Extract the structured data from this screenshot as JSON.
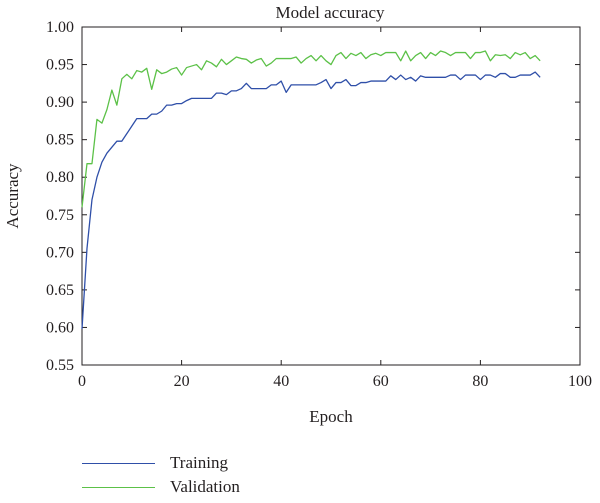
{
  "chart_data": {
    "type": "line",
    "title": "Model accuracy",
    "xlabel": "Epoch",
    "ylabel": "Accuracy",
    "xlim": [
      0,
      100
    ],
    "ylim": [
      0.55,
      1.0
    ],
    "xticks": [
      0,
      20,
      40,
      60,
      80,
      100
    ],
    "yticks": [
      "0.55",
      "0.60",
      "0.65",
      "0.70",
      "0.75",
      "0.80",
      "0.85",
      "0.90",
      "0.95",
      "1.00"
    ],
    "grid": false,
    "legend_position": "below",
    "colors": {
      "Training": "#2f4fa8",
      "Validation": "#5cc148"
    },
    "series": [
      {
        "name": "Training",
        "color": "#2f4fa8",
        "x": [
          0,
          1,
          2,
          3,
          4,
          5,
          6,
          7,
          8,
          9,
          10,
          11,
          12,
          13,
          14,
          15,
          16,
          17,
          18,
          19,
          20,
          21,
          22,
          23,
          24,
          25,
          26,
          27,
          28,
          29,
          30,
          31,
          32,
          33,
          34,
          35,
          36,
          37,
          38,
          39,
          40,
          41,
          42,
          43,
          44,
          45,
          46,
          47,
          48,
          49,
          50,
          51,
          52,
          53,
          54,
          55,
          56,
          57,
          58,
          59,
          60,
          61,
          62,
          63,
          64,
          65,
          66,
          67,
          68,
          69,
          70,
          71,
          72,
          73,
          74,
          75,
          76,
          77,
          78,
          79,
          80,
          81,
          82,
          83,
          84,
          85,
          86,
          87,
          88,
          89,
          90,
          91,
          92
        ],
        "y": [
          0.598,
          0.705,
          0.77,
          0.8,
          0.82,
          0.832,
          0.84,
          0.848,
          0.848,
          0.858,
          0.868,
          0.878,
          0.878,
          0.878,
          0.884,
          0.884,
          0.888,
          0.896,
          0.896,
          0.898,
          0.898,
          0.902,
          0.905,
          0.905,
          0.905,
          0.905,
          0.905,
          0.912,
          0.912,
          0.91,
          0.915,
          0.915,
          0.918,
          0.925,
          0.918,
          0.918,
          0.918,
          0.918,
          0.923,
          0.923,
          0.928,
          0.913,
          0.923,
          0.923,
          0.923,
          0.923,
          0.923,
          0.923,
          0.926,
          0.93,
          0.918,
          0.926,
          0.926,
          0.93,
          0.922,
          0.922,
          0.926,
          0.926,
          0.928,
          0.928,
          0.928,
          0.928,
          0.935,
          0.93,
          0.936,
          0.93,
          0.933,
          0.928,
          0.935,
          0.933,
          0.933,
          0.933,
          0.933,
          0.933,
          0.936,
          0.936,
          0.93,
          0.936,
          0.936,
          0.936,
          0.93,
          0.936,
          0.936,
          0.933,
          0.938,
          0.938,
          0.933,
          0.933,
          0.936,
          0.936,
          0.936,
          0.94,
          0.933
        ]
      },
      {
        "name": "Validation",
        "color": "#5cc148",
        "x": [
          0,
          1,
          2,
          3,
          4,
          5,
          6,
          7,
          8,
          9,
          10,
          11,
          12,
          13,
          14,
          15,
          16,
          17,
          18,
          19,
          20,
          21,
          22,
          23,
          24,
          25,
          26,
          27,
          28,
          29,
          30,
          31,
          32,
          33,
          34,
          35,
          36,
          37,
          38,
          39,
          40,
          41,
          42,
          43,
          44,
          45,
          46,
          47,
          48,
          49,
          50,
          51,
          52,
          53,
          54,
          55,
          56,
          57,
          58,
          59,
          60,
          61,
          62,
          63,
          64,
          65,
          66,
          67,
          68,
          69,
          70,
          71,
          72,
          73,
          74,
          75,
          76,
          77,
          78,
          79,
          80,
          81,
          82,
          83,
          84,
          85,
          86,
          87,
          88,
          89,
          90,
          91,
          92
        ],
        "y": [
          0.76,
          0.818,
          0.818,
          0.877,
          0.872,
          0.89,
          0.916,
          0.896,
          0.931,
          0.937,
          0.931,
          0.942,
          0.94,
          0.945,
          0.917,
          0.943,
          0.938,
          0.94,
          0.944,
          0.946,
          0.936,
          0.946,
          0.948,
          0.95,
          0.943,
          0.955,
          0.952,
          0.947,
          0.957,
          0.95,
          0.955,
          0.96,
          0.958,
          0.957,
          0.952,
          0.956,
          0.958,
          0.948,
          0.952,
          0.958,
          0.958,
          0.958,
          0.958,
          0.96,
          0.952,
          0.958,
          0.962,
          0.955,
          0.962,
          0.955,
          0.95,
          0.962,
          0.966,
          0.958,
          0.965,
          0.962,
          0.966,
          0.958,
          0.963,
          0.965,
          0.962,
          0.966,
          0.966,
          0.966,
          0.955,
          0.968,
          0.955,
          0.962,
          0.966,
          0.958,
          0.966,
          0.962,
          0.968,
          0.966,
          0.962,
          0.966,
          0.966,
          0.966,
          0.958,
          0.966,
          0.966,
          0.968,
          0.955,
          0.963,
          0.962,
          0.963,
          0.958,
          0.966,
          0.963,
          0.966,
          0.958,
          0.962,
          0.955
        ]
      }
    ]
  }
}
